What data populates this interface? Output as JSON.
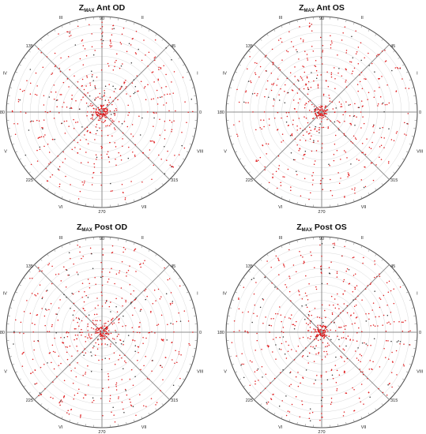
{
  "chart_data": [
    {
      "type": "polar",
      "title": {
        "main": "Z",
        "sub": "MAX",
        "rest": " Ant OD"
      },
      "angle_labels": [
        "90",
        "45",
        "0",
        "315",
        "270",
        "225",
        "180",
        "135"
      ],
      "sector_labels": [
        "I",
        "II",
        "III",
        "IV",
        "V",
        "VI",
        "VII",
        "VIII"
      ],
      "point_color": "#e0191b",
      "grid": true
    },
    {
      "type": "polar",
      "title": {
        "main": "Z",
        "sub": "MAX",
        "rest": " Ant OS"
      },
      "angle_labels": [
        "90",
        "45",
        "0",
        "315",
        "270",
        "225",
        "180",
        "135"
      ],
      "sector_labels": [
        "I",
        "II",
        "III",
        "IV",
        "V",
        "VI",
        "VII",
        "VIII"
      ],
      "point_color": "#e0191b",
      "grid": true
    },
    {
      "type": "polar",
      "title": {
        "main": "Z",
        "sub": "MAX",
        "rest": " Post OD"
      },
      "angle_labels": [
        "90",
        "45",
        "0",
        "315",
        "270",
        "225",
        "180",
        "135"
      ],
      "sector_labels": [
        "I",
        "II",
        "III",
        "IV",
        "V",
        "VI",
        "VII",
        "VIII"
      ],
      "point_color": "#e0191b",
      "grid": true
    },
    {
      "type": "polar",
      "title": {
        "main": "Z",
        "sub": "MAX",
        "rest": " Post OS"
      },
      "angle_labels": [
        "90",
        "45",
        "0",
        "315",
        "270",
        "225",
        "180",
        "135"
      ],
      "sector_labels": [
        "I",
        "II",
        "III",
        "IV",
        "V",
        "VI",
        "VII",
        "VIII"
      ],
      "point_color": "#e0191b",
      "grid": true
    }
  ]
}
